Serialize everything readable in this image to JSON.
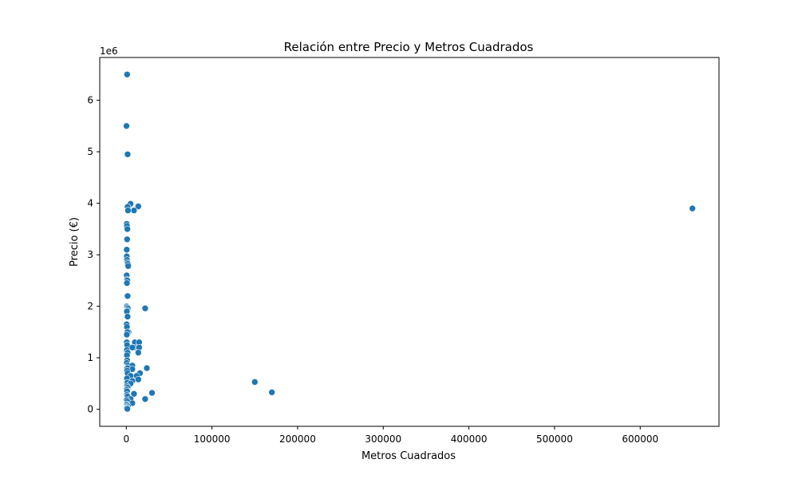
{
  "chart_data": {
    "type": "scatter",
    "title": "Relación entre Precio y Metros Cuadrados",
    "xlabel": "Metros Cuadrados",
    "ylabel": "Precio (€)",
    "y_offset_label": "1e6",
    "xlim": [
      -31000,
      692000
    ],
    "ylim": [
      -330000,
      6830000
    ],
    "x_ticks": [
      0,
      100000,
      200000,
      300000,
      400000,
      500000,
      600000
    ],
    "x_tick_labels": [
      "0",
      "100000",
      "200000",
      "300000",
      "400000",
      "500000",
      "600000"
    ],
    "y_ticks": [
      0,
      1000000,
      2000000,
      3000000,
      4000000,
      5000000,
      6000000
    ],
    "y_tick_labels": [
      "0",
      "1",
      "2",
      "3",
      "4",
      "5",
      "6"
    ],
    "grid": false,
    "marker_color": "#1f77b4",
    "series": [
      {
        "points": [
          [
            1000,
            6500000
          ],
          [
            200,
            5500000
          ],
          [
            1500,
            4950000
          ],
          [
            5000,
            3990000
          ],
          [
            14000,
            3940000
          ],
          [
            1500,
            3930000
          ],
          [
            9000,
            3860000
          ],
          [
            2000,
            3860000
          ],
          [
            500,
            3600000
          ],
          [
            800,
            3560000
          ],
          [
            1200,
            3500000
          ],
          [
            1000,
            3300000
          ],
          [
            500,
            3100000
          ],
          [
            600,
            2970000
          ],
          [
            900,
            2900000
          ],
          [
            1200,
            2850000
          ],
          [
            1800,
            2820000
          ],
          [
            2200,
            2780000
          ],
          [
            500,
            2600000
          ],
          [
            700,
            2520000
          ],
          [
            1200,
            2500000
          ],
          [
            800,
            2450000
          ],
          [
            1500,
            2200000
          ],
          [
            500,
            2000000
          ],
          [
            1000,
            1980000
          ],
          [
            1800,
            1960000
          ],
          [
            22000,
            1960000
          ],
          [
            1200,
            1920000
          ],
          [
            700,
            1900000
          ],
          [
            1500,
            1800000
          ],
          [
            400,
            1650000
          ],
          [
            800,
            1600000
          ],
          [
            2500,
            1500000
          ],
          [
            1200,
            1500000
          ],
          [
            600,
            1450000
          ],
          [
            10000,
            1300000
          ],
          [
            15000,
            1300000
          ],
          [
            500,
            1300000
          ],
          [
            1000,
            1250000
          ],
          [
            9000,
            1200000
          ],
          [
            15000,
            1200000
          ],
          [
            7000,
            1200000
          ],
          [
            600,
            1150000
          ],
          [
            1500,
            1100000
          ],
          [
            14000,
            1100000
          ],
          [
            800,
            1050000
          ],
          [
            1000,
            950000
          ],
          [
            600,
            900000
          ],
          [
            1800,
            850000
          ],
          [
            7000,
            850000
          ],
          [
            24000,
            800000
          ],
          [
            600,
            800000
          ],
          [
            1500,
            800000
          ],
          [
            7000,
            780000
          ],
          [
            1000,
            750000
          ],
          [
            16000,
            700000
          ],
          [
            1500,
            700000
          ],
          [
            12000,
            650000
          ],
          [
            5000,
            650000
          ],
          [
            800,
            600000
          ],
          [
            14000,
            580000
          ],
          [
            7000,
            550000
          ],
          [
            1200,
            520000
          ],
          [
            5000,
            500000
          ],
          [
            800,
            450000
          ],
          [
            1500,
            420000
          ],
          [
            500,
            380000
          ],
          [
            1000,
            350000
          ],
          [
            30000,
            320000
          ],
          [
            9000,
            300000
          ],
          [
            800,
            280000
          ],
          [
            1500,
            250000
          ],
          [
            22000,
            200000
          ],
          [
            5000,
            200000
          ],
          [
            400,
            180000
          ],
          [
            1200,
            150000
          ],
          [
            7000,
            120000
          ],
          [
            600,
            100000
          ],
          [
            1000,
            80000
          ],
          [
            2000,
            60000
          ],
          [
            800,
            40000
          ],
          [
            500,
            20000
          ],
          [
            1200,
            10000
          ],
          [
            150000,
            530000
          ],
          [
            170000,
            330000
          ],
          [
            661000,
            3900000
          ]
        ]
      }
    ]
  }
}
